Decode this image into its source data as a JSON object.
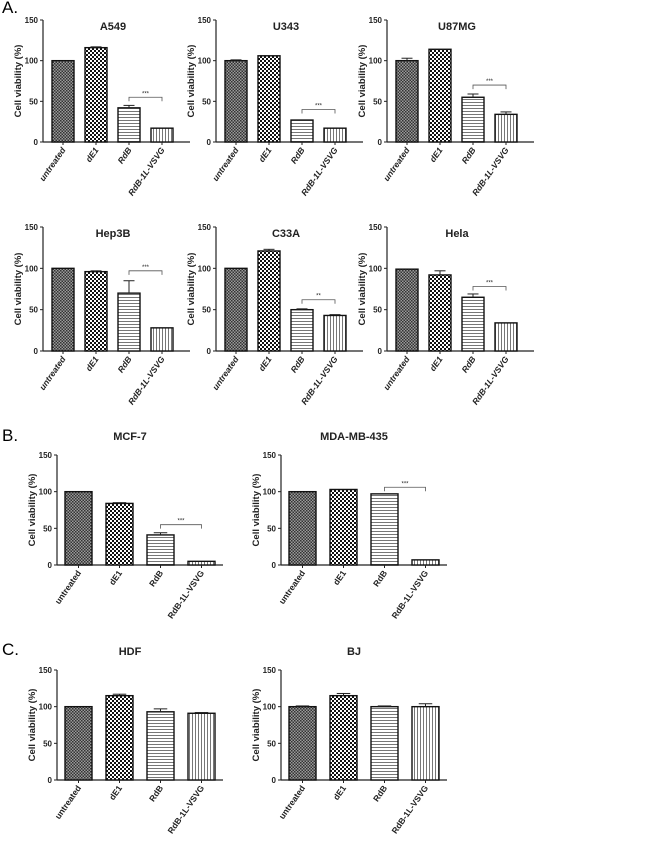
{
  "panel_labels": [
    "A.",
    "B.",
    "C."
  ],
  "chart_data": [
    {
      "type": "bar",
      "panel": "A.",
      "title": "A549",
      "ylabel": "Cell viability (%)",
      "ylim": [
        0,
        150
      ],
      "yticks": [
        0,
        50,
        100,
        150
      ],
      "categories": [
        "untreated",
        "dE1",
        "RdB",
        "RdB-1L-VSVG"
      ],
      "values": [
        100,
        116,
        42,
        17
      ],
      "errors": [
        0,
        1,
        3,
        0
      ],
      "significance": {
        "between": [
          "RdB",
          "RdB-1L-VSVG"
        ],
        "label": "***",
        "y": 55
      }
    },
    {
      "type": "bar",
      "panel": "A.",
      "title": "U343",
      "ylabel": "Cell viability (%)",
      "ylim": [
        0,
        150
      ],
      "yticks": [
        0,
        50,
        100,
        150
      ],
      "categories": [
        "untreated",
        "dE1",
        "RdB",
        "RdB-1L-VSVG"
      ],
      "values": [
        100,
        106,
        27,
        17
      ],
      "errors": [
        1,
        0,
        0,
        0
      ],
      "significance": {
        "between": [
          "RdB",
          "RdB-1L-VSVG"
        ],
        "label": "***",
        "y": 40
      }
    },
    {
      "type": "bar",
      "panel": "A.",
      "title": "U87MG",
      "ylabel": "Cell viability (%)",
      "ylim": [
        0,
        150
      ],
      "yticks": [
        0,
        50,
        100,
        150
      ],
      "categories": [
        "untreated",
        "dE1",
        "RdB",
        "RdB-1L-VSVG"
      ],
      "values": [
        100,
        114,
        55,
        34
      ],
      "errors": [
        3,
        0,
        4,
        3
      ],
      "significance": {
        "between": [
          "RdB",
          "RdB-1L-VSVG"
        ],
        "label": "***",
        "y": 70
      }
    },
    {
      "type": "bar",
      "panel": "A.",
      "title": "Hep3B",
      "ylabel": "Cell viability (%)",
      "ylim": [
        0,
        150
      ],
      "yticks": [
        0,
        50,
        100,
        150
      ],
      "categories": [
        "untreated",
        "dE1",
        "RdB",
        "RdB-1L-VSVG"
      ],
      "values": [
        100,
        96,
        70,
        28
      ],
      "errors": [
        0,
        1,
        15,
        0
      ],
      "significance": {
        "between": [
          "RdB",
          "RdB-1L-VSVG"
        ],
        "label": "***",
        "y": 97
      }
    },
    {
      "type": "bar",
      "panel": "A.",
      "title": "C33A",
      "ylabel": "Cell viability (%)",
      "ylim": [
        0,
        150
      ],
      "yticks": [
        0,
        50,
        100,
        150
      ],
      "categories": [
        "untreated",
        "dE1",
        "RdB",
        "RdB-1L-VSVG"
      ],
      "values": [
        100,
        121,
        50,
        43
      ],
      "errors": [
        0,
        2,
        1,
        1
      ],
      "significance": {
        "between": [
          "RdB",
          "RdB-1L-VSVG"
        ],
        "label": "**",
        "y": 62
      }
    },
    {
      "type": "bar",
      "panel": "A.",
      "title": "Hela",
      "ylabel": "Cell viability (%)",
      "ylim": [
        0,
        150
      ],
      "yticks": [
        0,
        50,
        100,
        150
      ],
      "categories": [
        "untreated",
        "dE1",
        "RdB",
        "RdB-1L-VSVG"
      ],
      "values": [
        99,
        92,
        65,
        34
      ],
      "errors": [
        0,
        5,
        4,
        0
      ],
      "significance": {
        "between": [
          "RdB",
          "RdB-1L-VSVG"
        ],
        "label": "***",
        "y": 78
      }
    },
    {
      "type": "bar",
      "panel": "B.",
      "title": "MCF-7",
      "ylabel": "Cell viability (%)",
      "ylim": [
        0,
        150
      ],
      "yticks": [
        0,
        50,
        100,
        150
      ],
      "categories": [
        "untreated",
        "dE1",
        "RdB",
        "RdB-1L-VSVG"
      ],
      "values": [
        100,
        84,
        41,
        5
      ],
      "errors": [
        0,
        1,
        3,
        0
      ],
      "significance": {
        "between": [
          "RdB",
          "RdB-1L-VSVG"
        ],
        "label": "***",
        "y": 55
      }
    },
    {
      "type": "bar",
      "panel": "B.",
      "title": "MDA-MB-435",
      "ylabel": "Cell viability (%)",
      "ylim": [
        0,
        150
      ],
      "yticks": [
        0,
        50,
        100,
        150
      ],
      "categories": [
        "untreated",
        "dE1",
        "RdB",
        "RdB-1L-VSVG"
      ],
      "values": [
        100,
        103,
        97,
        7
      ],
      "errors": [
        0,
        0,
        0,
        0
      ],
      "significance": {
        "between": [
          "RdB",
          "RdB-1L-VSVG"
        ],
        "label": "***",
        "y": 106
      }
    },
    {
      "type": "bar",
      "panel": "C.",
      "title": "HDF",
      "ylabel": "Cell viability (%)",
      "ylim": [
        0,
        150
      ],
      "yticks": [
        0,
        50,
        100,
        150
      ],
      "categories": [
        "untreated",
        "dE1",
        "RdB",
        "RdB-1L-VSVG"
      ],
      "values": [
        100,
        115,
        93,
        91
      ],
      "errors": [
        0,
        2,
        4,
        1
      ],
      "significance": null
    },
    {
      "type": "bar",
      "panel": "C.",
      "title": "BJ",
      "ylabel": "Cell viability (%)",
      "ylim": [
        0,
        150
      ],
      "yticks": [
        0,
        50,
        100,
        150
      ],
      "categories": [
        "untreated",
        "dE1",
        "RdB",
        "RdB-1L-VSVG"
      ],
      "values": [
        100,
        115,
        100,
        100
      ],
      "errors": [
        1,
        3,
        1,
        4
      ],
      "significance": null
    }
  ]
}
